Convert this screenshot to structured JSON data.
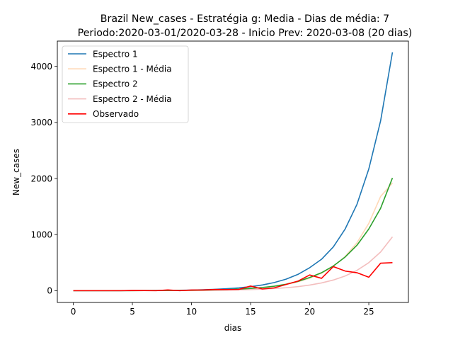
{
  "chart_data": {
    "type": "line",
    "title_line1": "Brazil New_cases - Estratégia g: Media - Dias de média: 7",
    "title_line2": "Periodo:2020-03-01/2020-03-28 - Inicio Prev: 2020-03-08 (20 dias)",
    "xlabel": "dias",
    "ylabel": "New_cases",
    "xlim": [
      -1.35,
      28.35
    ],
    "ylim": [
      -210,
      4450
    ],
    "x_ticks": [
      0,
      5,
      10,
      15,
      20,
      25
    ],
    "y_ticks": [
      0,
      1000,
      2000,
      3000,
      4000
    ],
    "x_tick_labels": [
      "0",
      "5",
      "10",
      "15",
      "20",
      "25"
    ],
    "y_tick_labels": [
      "0",
      "1000",
      "2000",
      "3000",
      "4000"
    ],
    "legend_position": "top-left",
    "x": [
      0,
      1,
      2,
      3,
      4,
      5,
      6,
      7,
      8,
      9,
      10,
      11,
      12,
      13,
      14,
      15,
      16,
      17,
      18,
      19,
      20,
      21,
      22,
      23,
      24,
      25,
      26,
      27
    ],
    "series": [
      {
        "name": "Espectro 1",
        "color": "#1f77b4",
        "opacity": 1,
        "values": [
          0,
          0,
          0,
          0,
          1,
          2,
          3,
          4,
          6,
          8,
          11,
          16,
          24,
          35,
          50,
          72,
          102,
          145,
          205,
          290,
          410,
          560,
          780,
          1100,
          1540,
          2170,
          3030,
          4250
        ]
      },
      {
        "name": "Espectro 1 - Média",
        "color": "#ff7f0e",
        "opacity": 0.3,
        "values": [
          0,
          0,
          0,
          0,
          0,
          1,
          2,
          3,
          4,
          5,
          7,
          10,
          14,
          20,
          28,
          40,
          56,
          79,
          112,
          158,
          222,
          310,
          435,
          610,
          855,
          1200,
          1680,
          1920
        ]
      },
      {
        "name": "Espectro 2",
        "color": "#2ca02c",
        "opacity": 1,
        "values": [
          0,
          0,
          0,
          0,
          0,
          1,
          2,
          3,
          4,
          5,
          7,
          10,
          14,
          20,
          28,
          40,
          57,
          80,
          115,
          165,
          235,
          320,
          440,
          600,
          810,
          1100,
          1470,
          2010
        ]
      },
      {
        "name": "Espectro 2 - Média",
        "color": "#d62728",
        "opacity": 0.3,
        "values": [
          0,
          0,
          0,
          0,
          0,
          0,
          1,
          1,
          2,
          3,
          4,
          6,
          8,
          11,
          15,
          20,
          28,
          38,
          52,
          72,
          100,
          138,
          190,
          262,
          362,
          500,
          690,
          960
        ]
      },
      {
        "name": "Observado",
        "color": "#ff0000",
        "opacity": 1,
        "values": [
          0,
          0,
          0,
          0,
          0,
          4,
          2,
          0,
          13,
          0,
          12,
          13,
          21,
          20,
          22,
          83,
          30,
          50,
          110,
          170,
          280,
          220,
          430,
          350,
          320,
          240,
          490,
          500
        ]
      }
    ]
  }
}
